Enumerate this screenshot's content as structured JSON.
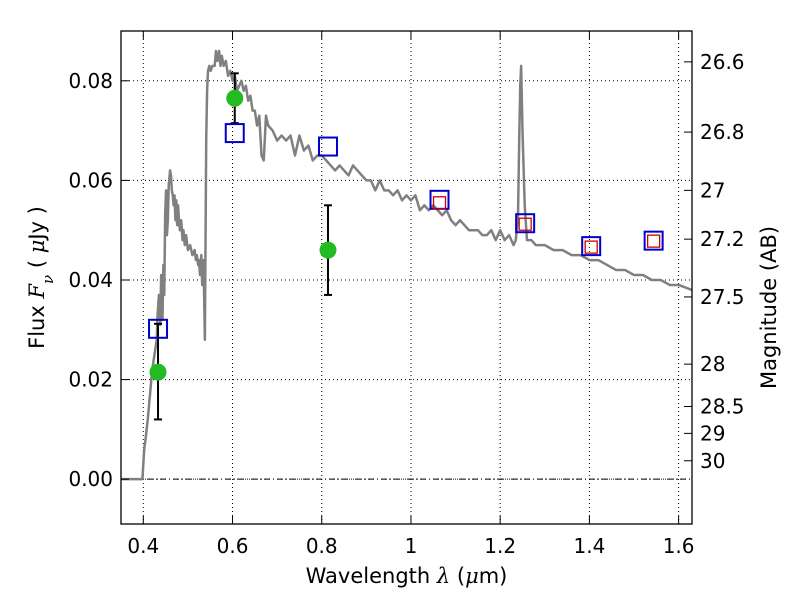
{
  "chart_data": {
    "type": "scatter",
    "title": "",
    "xlabel_text": "Wavelength",
    "xlabel_symbol": "λ",
    "xlabel_unit_open": "(",
    "xlabel_unit_mu": "μ",
    "xlabel_unit_rest": "m)",
    "ylabel_text": "Flux",
    "ylabel_symbol_main": "F",
    "ylabel_symbol_sub": "ν",
    "ylabel_unit_open": "(",
    "ylabel_unit_mu": "μ",
    "ylabel_unit_rest": "Jy )",
    "y2label": "Magnitude (AB)",
    "xlim": [
      0.35,
      1.63
    ],
    "ylim": [
      -0.009,
      0.09
    ],
    "grid": true,
    "x_ticks": [
      0.4,
      0.6,
      0.8,
      1.0,
      1.2,
      1.4,
      1.6
    ],
    "x_tick_labels": [
      "0.4",
      "0.6",
      "0.8",
      "1",
      "1.2",
      "1.4",
      "1.6"
    ],
    "y_ticks": [
      0.0,
      0.02,
      0.04,
      0.06,
      0.08
    ],
    "y_tick_labels": [
      "0.00",
      "0.02",
      "0.04",
      "0.06",
      "0.08"
    ],
    "magnitude_ticks": [
      {
        "label": "26.6",
        "flux": 0.0838
      },
      {
        "label": "26.8",
        "flux": 0.0697
      },
      {
        "label": "27",
        "flux": 0.058
      },
      {
        "label": "27.2",
        "flux": 0.0482
      },
      {
        "label": "27.5",
        "flux": 0.0366
      },
      {
        "label": "28",
        "flux": 0.0231
      },
      {
        "label": "28.5",
        "flux": 0.0146
      },
      {
        "label": "29",
        "flux": 0.0092
      },
      {
        "label": "30",
        "flux": 0.0037
      }
    ],
    "model_spectrum": {
      "color": "#808080",
      "x": [
        0.35,
        0.398,
        0.402,
        0.405,
        0.41,
        0.42,
        0.43,
        0.432,
        0.435,
        0.438,
        0.44,
        0.443,
        0.445,
        0.447,
        0.449,
        0.451,
        0.453,
        0.455,
        0.457,
        0.46,
        0.462,
        0.464,
        0.466,
        0.468,
        0.47,
        0.472,
        0.474,
        0.476,
        0.478,
        0.48,
        0.482,
        0.485,
        0.488,
        0.49,
        0.493,
        0.496,
        0.5,
        0.505,
        0.51,
        0.515,
        0.518,
        0.52,
        0.523,
        0.525,
        0.527,
        0.53,
        0.532,
        0.535,
        0.538,
        0.541,
        0.543,
        0.545,
        0.548,
        0.551,
        0.555,
        0.56,
        0.563,
        0.566,
        0.57,
        0.573,
        0.576,
        0.58,
        0.585,
        0.59,
        0.595,
        0.6,
        0.605,
        0.61,
        0.615,
        0.62,
        0.625,
        0.63,
        0.635,
        0.64,
        0.645,
        0.65,
        0.655,
        0.66,
        0.665,
        0.67,
        0.675,
        0.68,
        0.69,
        0.7,
        0.71,
        0.72,
        0.73,
        0.74,
        0.75,
        0.76,
        0.77,
        0.78,
        0.79,
        0.8,
        0.81,
        0.82,
        0.83,
        0.84,
        0.85,
        0.86,
        0.87,
        0.88,
        0.89,
        0.9,
        0.91,
        0.92,
        0.93,
        0.94,
        0.95,
        0.96,
        0.97,
        0.98,
        0.99,
        1.0,
        1.01,
        1.02,
        1.03,
        1.04,
        1.05,
        1.06,
        1.07,
        1.08,
        1.09,
        1.1,
        1.11,
        1.12,
        1.13,
        1.14,
        1.15,
        1.16,
        1.17,
        1.18,
        1.19,
        1.2,
        1.21,
        1.22,
        1.23,
        1.235,
        1.24,
        1.243,
        1.245,
        1.247,
        1.25,
        1.255,
        1.26,
        1.27,
        1.28,
        1.3,
        1.32,
        1.34,
        1.36,
        1.38,
        1.4,
        1.42,
        1.44,
        1.46,
        1.48,
        1.5,
        1.52,
        1.54,
        1.56,
        1.58,
        1.6,
        1.63
      ],
      "y": [
        0.0,
        0.0,
        0.006,
        0.008,
        0.012,
        0.022,
        0.028,
        0.033,
        0.037,
        0.031,
        0.041,
        0.032,
        0.043,
        0.037,
        0.053,
        0.058,
        0.049,
        0.052,
        0.059,
        0.062,
        0.061,
        0.058,
        0.057,
        0.055,
        0.057,
        0.052,
        0.056,
        0.051,
        0.055,
        0.052,
        0.05,
        0.052,
        0.048,
        0.05,
        0.047,
        0.049,
        0.046,
        0.047,
        0.045,
        0.046,
        0.044,
        0.045,
        0.043,
        0.044,
        0.041,
        0.045,
        0.039,
        0.044,
        0.028,
        0.068,
        0.078,
        0.082,
        0.083,
        0.082,
        0.083,
        0.083,
        0.086,
        0.084,
        0.086,
        0.083,
        0.085,
        0.083,
        0.084,
        0.081,
        0.082,
        0.08,
        0.081,
        0.078,
        0.079,
        0.08,
        0.078,
        0.079,
        0.076,
        0.077,
        0.074,
        0.074,
        0.071,
        0.073,
        0.065,
        0.064,
        0.073,
        0.071,
        0.07,
        0.068,
        0.069,
        0.068,
        0.069,
        0.065,
        0.069,
        0.066,
        0.067,
        0.064,
        0.065,
        0.065,
        0.064,
        0.063,
        0.062,
        0.063,
        0.062,
        0.061,
        0.063,
        0.062,
        0.061,
        0.06,
        0.06,
        0.058,
        0.06,
        0.058,
        0.058,
        0.057,
        0.058,
        0.056,
        0.057,
        0.056,
        0.057,
        0.054,
        0.055,
        0.054,
        0.055,
        0.054,
        0.053,
        0.054,
        0.052,
        0.051,
        0.052,
        0.051,
        0.05,
        0.05,
        0.05,
        0.049,
        0.049,
        0.05,
        0.048,
        0.05,
        0.048,
        0.049,
        0.047,
        0.048,
        0.053,
        0.07,
        0.079,
        0.083,
        0.07,
        0.055,
        0.048,
        0.048,
        0.047,
        0.047,
        0.046,
        0.046,
        0.045,
        0.045,
        0.044,
        0.044,
        0.043,
        0.042,
        0.042,
        0.041,
        0.041,
        0.04,
        0.04,
        0.039,
        0.039,
        0.038
      ]
    },
    "observed_points": {
      "color": "#22bb22",
      "x": [
        0.433,
        0.605,
        0.814
      ],
      "y": [
        0.0215,
        0.0765,
        0.046
      ],
      "err_low": [
        0.012,
        0.0715,
        0.037
      ],
      "err_high": [
        0.0312,
        0.0815,
        0.055
      ]
    },
    "model_photometry_blue": {
      "color": "#0000cc",
      "x": [
        0.433,
        0.605,
        0.814,
        1.064,
        1.256,
        1.404,
        1.544
      ],
      "y": [
        0.0302,
        0.0695,
        0.0668,
        0.0561,
        0.0514,
        0.0468,
        0.0479
      ]
    },
    "model_photometry_red": {
      "color": "#cc0000",
      "x": [
        1.064,
        1.256,
        1.404,
        1.544
      ],
      "y": [
        0.0555,
        0.0512,
        0.0466,
        0.0478
      ]
    }
  }
}
